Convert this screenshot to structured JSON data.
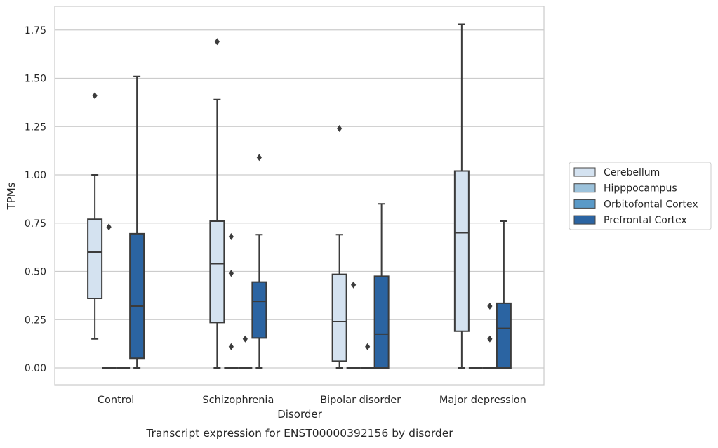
{
  "chart_data": {
    "type": "box",
    "title": "",
    "caption": "Transcript expression for ENST00000392156 by disorder",
    "xlabel": "Disorder",
    "ylabel": "TPMs",
    "ylim": [
      -0.085,
      1.865
    ],
    "yticks": [
      0.0,
      0.25,
      0.5,
      0.75,
      1.0,
      1.25,
      1.5,
      1.75
    ],
    "ytick_labels": [
      "0.00",
      "0.25",
      "0.50",
      "0.75",
      "1.00",
      "1.25",
      "1.50",
      "1.75"
    ],
    "grid": "horizontal",
    "legend_position": "right",
    "categories": [
      "Control",
      "Schizophrenia",
      "Bipolar disorder",
      "Major depression"
    ],
    "series": [
      {
        "name": "Cerebellum",
        "color": "#d4e2f0",
        "boxes": [
          {
            "min": 0.15,
            "q1": 0.36,
            "median": 0.6,
            "q3": 0.77,
            "max": 1.0,
            "outliers": [
              1.41
            ]
          },
          {
            "min": 0.0,
            "q1": 0.235,
            "median": 0.54,
            "q3": 0.76,
            "max": 1.39,
            "outliers": [
              1.69
            ]
          },
          {
            "min": 0.0,
            "q1": 0.035,
            "median": 0.24,
            "q3": 0.485,
            "max": 0.69,
            "outliers": [
              1.24
            ]
          },
          {
            "min": 0.0,
            "q1": 0.19,
            "median": 0.7,
            "q3": 1.02,
            "max": 1.78,
            "outliers": []
          }
        ]
      },
      {
        "name": "Hipppocampus",
        "color": "#9cc2db",
        "boxes": [
          {
            "min": 0.0,
            "q1": 0.0,
            "median": 0.0,
            "q3": 0.0,
            "max": 0.0,
            "outliers": [
              0.73
            ]
          },
          {
            "min": 0.0,
            "q1": 0.0,
            "median": 0.0,
            "q3": 0.0,
            "max": 0.0,
            "outliers": [
              0.68,
              0.49,
              0.11
            ]
          },
          {
            "min": 0.0,
            "q1": 0.0,
            "median": 0.0,
            "q3": 0.0,
            "max": 0.0,
            "outliers": [
              0.43
            ]
          },
          {
            "min": 0.0,
            "q1": 0.0,
            "median": 0.0,
            "q3": 0.0,
            "max": 0.0,
            "outliers": []
          }
        ]
      },
      {
        "name": "Orbitofontal Cortex",
        "color": "#5a9ac8",
        "boxes": [
          {
            "min": 0.0,
            "q1": 0.0,
            "median": 0.0,
            "q3": 0.0,
            "max": 0.0,
            "outliers": []
          },
          {
            "min": 0.0,
            "q1": 0.0,
            "median": 0.0,
            "q3": 0.0,
            "max": 0.0,
            "outliers": [
              0.15
            ]
          },
          {
            "min": 0.0,
            "q1": 0.0,
            "median": 0.0,
            "q3": 0.0,
            "max": 0.0,
            "outliers": [
              0.11
            ]
          },
          {
            "min": 0.0,
            "q1": 0.0,
            "median": 0.0,
            "q3": 0.0,
            "max": 0.0,
            "outliers": [
              0.32,
              0.15
            ]
          }
        ]
      },
      {
        "name": "Prefrontal Cortex",
        "color": "#2b64a2",
        "boxes": [
          {
            "min": 0.0,
            "q1": 0.05,
            "median": 0.32,
            "q3": 0.695,
            "max": 1.51,
            "outliers": []
          },
          {
            "min": 0.0,
            "q1": 0.155,
            "median": 0.345,
            "q3": 0.445,
            "max": 0.69,
            "outliers": [
              1.09
            ]
          },
          {
            "min": 0.0,
            "q1": 0.0,
            "median": 0.175,
            "q3": 0.475,
            "max": 0.85,
            "outliers": []
          },
          {
            "min": 0.0,
            "q1": 0.0,
            "median": 0.205,
            "q3": 0.335,
            "max": 0.76,
            "outliers": []
          }
        ]
      }
    ]
  }
}
